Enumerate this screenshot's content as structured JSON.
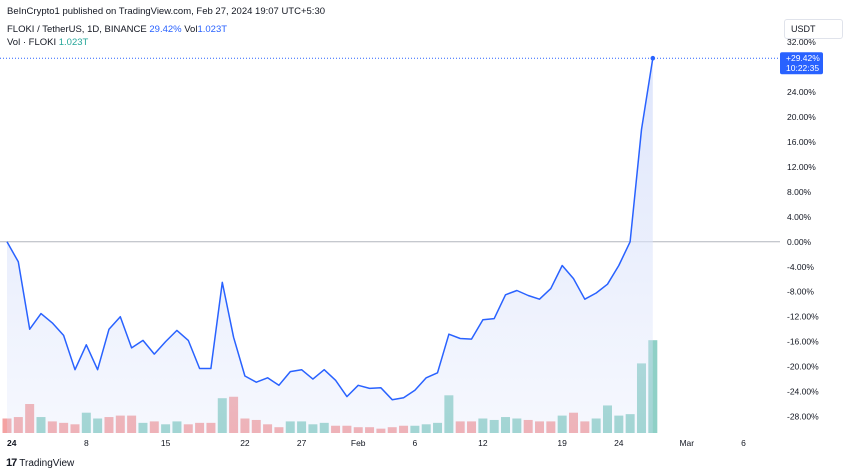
{
  "header": {
    "credit": "BeInCrypto1 published on TradingView.com, Feb 27, 2024 19:07 UTC+5:30",
    "symbol": "FLOKI / TetherUS, 1D, BINANCE",
    "change": "29.42%",
    "vol_label": "Vol",
    "vol_value": "1.023T",
    "vol_series_label": "Vol · FLOKI",
    "vol_series_value": "1.023T"
  },
  "currency_button": "USDT",
  "current_price_label": {
    "value": "+29.42%",
    "countdown": "10:22:35"
  },
  "footer": {
    "brand": "TradingView",
    "logo_icon": "tradingview-logo-icon"
  },
  "colors": {
    "line": "#2962ff",
    "area_fill": "#dbe3fb",
    "volume_up": "#8fd0c6",
    "volume_down": "#f4a2a2",
    "zero_line": "#b2b5be",
    "price_dotted": "#2962ff"
  },
  "chart_data": {
    "type": "line",
    "scale": "percent",
    "ylim": [
      -32,
      34
    ],
    "y_ticks": [
      "32.00%",
      "28.00%",
      "24.00%",
      "20.00%",
      "16.00%",
      "12.00%",
      "8.00%",
      "4.00%",
      "0.00%",
      "-4.00%",
      "-8.00%",
      "-12.00%",
      "-16.00%",
      "-20.00%",
      "-24.00%",
      "-28.00%"
    ],
    "y_tick_values": [
      32,
      28,
      24,
      20,
      16,
      12,
      8,
      4,
      0,
      -4,
      -8,
      -12,
      -16,
      -20,
      -24,
      -28
    ],
    "x_ticks": [
      {
        "label": "24",
        "index": 0,
        "bold": true
      },
      {
        "label": "8",
        "index": 7,
        "bold": false
      },
      {
        "label": "15",
        "index": 14,
        "bold": false
      },
      {
        "label": "22",
        "index": 21,
        "bold": false
      },
      {
        "label": "27",
        "index": 26,
        "bold": false
      },
      {
        "label": "Feb",
        "index": 31,
        "bold": false
      },
      {
        "label": "6",
        "index": 36,
        "bold": false
      },
      {
        "label": "12",
        "index": 42,
        "bold": false
      },
      {
        "label": "19",
        "index": 49,
        "bold": false
      },
      {
        "label": "24",
        "index": 54,
        "bold": false
      },
      {
        "label": "Mar",
        "index": 60,
        "bold": false
      },
      {
        "label": "6",
        "index": 65,
        "bold": false
      }
    ],
    "x_last_index": 66,
    "series": [
      {
        "values": [
          0.0,
          -3.2,
          -14.0,
          -11.5,
          -13.0,
          -15.0,
          -20.5,
          -16.5,
          -20.5,
          -14.0,
          -12.0,
          -17.0,
          -15.8,
          -18.0,
          -16.0,
          -14.2,
          -15.8,
          -20.3,
          -20.3,
          -6.5,
          -15.3,
          -21.5,
          -22.5,
          -21.8,
          -23.0,
          -20.8,
          -20.5,
          -22.0,
          -20.5,
          -22.2,
          -24.8,
          -23.0,
          -23.5,
          -23.4,
          -25.3,
          -25.0,
          -23.8,
          -21.8,
          -21.0,
          -14.8,
          -15.5,
          -15.6,
          -12.5,
          -12.3,
          -8.5,
          -7.8,
          -8.6,
          -9.2,
          -7.5,
          -3.8,
          -5.9,
          -9.2,
          -8.2,
          -6.8,
          -3.8,
          0.0,
          18.0,
          29.42
        ]
      }
    ],
    "volume": [
      {
        "value": 1.0,
        "dir": "down"
      },
      {
        "value": 1.1,
        "dir": "down"
      },
      {
        "value": 2.0,
        "dir": "down"
      },
      {
        "value": 1.1,
        "dir": "up"
      },
      {
        "value": 0.8,
        "dir": "down"
      },
      {
        "value": 0.7,
        "dir": "down"
      },
      {
        "value": 0.6,
        "dir": "down"
      },
      {
        "value": 1.4,
        "dir": "up"
      },
      {
        "value": 1.0,
        "dir": "up"
      },
      {
        "value": 1.1,
        "dir": "down"
      },
      {
        "value": 1.2,
        "dir": "down"
      },
      {
        "value": 1.2,
        "dir": "down"
      },
      {
        "value": 0.7,
        "dir": "up"
      },
      {
        "value": 0.8,
        "dir": "down"
      },
      {
        "value": 0.6,
        "dir": "up"
      },
      {
        "value": 0.8,
        "dir": "up"
      },
      {
        "value": 0.6,
        "dir": "down"
      },
      {
        "value": 0.7,
        "dir": "down"
      },
      {
        "value": 0.7,
        "dir": "down"
      },
      {
        "value": 2.4,
        "dir": "up"
      },
      {
        "value": 2.5,
        "dir": "down"
      },
      {
        "value": 1.0,
        "dir": "down"
      },
      {
        "value": 0.9,
        "dir": "down"
      },
      {
        "value": 0.6,
        "dir": "down"
      },
      {
        "value": 0.4,
        "dir": "down"
      },
      {
        "value": 0.8,
        "dir": "up"
      },
      {
        "value": 0.8,
        "dir": "up"
      },
      {
        "value": 0.6,
        "dir": "up"
      },
      {
        "value": 0.7,
        "dir": "up"
      },
      {
        "value": 0.5,
        "dir": "down"
      },
      {
        "value": 0.5,
        "dir": "down"
      },
      {
        "value": 0.4,
        "dir": "down"
      },
      {
        "value": 0.4,
        "dir": "down"
      },
      {
        "value": 0.3,
        "dir": "down"
      },
      {
        "value": 0.4,
        "dir": "down"
      },
      {
        "value": 0.5,
        "dir": "down"
      },
      {
        "value": 0.5,
        "dir": "up"
      },
      {
        "value": 0.6,
        "dir": "up"
      },
      {
        "value": 0.7,
        "dir": "up"
      },
      {
        "value": 2.6,
        "dir": "up"
      },
      {
        "value": 0.8,
        "dir": "down"
      },
      {
        "value": 0.8,
        "dir": "down"
      },
      {
        "value": 1.0,
        "dir": "up"
      },
      {
        "value": 0.9,
        "dir": "up"
      },
      {
        "value": 1.1,
        "dir": "up"
      },
      {
        "value": 1.0,
        "dir": "up"
      },
      {
        "value": 0.9,
        "dir": "down"
      },
      {
        "value": 0.8,
        "dir": "down"
      },
      {
        "value": 0.8,
        "dir": "down"
      },
      {
        "value": 1.2,
        "dir": "up"
      },
      {
        "value": 1.4,
        "dir": "down"
      },
      {
        "value": 0.8,
        "dir": "down"
      },
      {
        "value": 1.0,
        "dir": "up"
      },
      {
        "value": 1.9,
        "dir": "up"
      },
      {
        "value": 1.2,
        "dir": "up"
      },
      {
        "value": 1.3,
        "dir": "up"
      },
      {
        "value": 4.8,
        "dir": "up"
      },
      {
        "value": 6.4,
        "dir": "up"
      }
    ]
  }
}
